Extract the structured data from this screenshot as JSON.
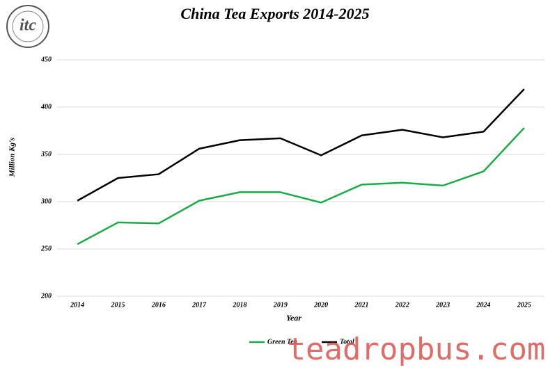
{
  "chart_data": {
    "type": "line",
    "title": "China Tea Exports 2014-2025",
    "x_label": "Year",
    "y_label": "Million Kg's",
    "categories": [
      "2014",
      "2015",
      "2016",
      "2017",
      "2018",
      "2019",
      "2020",
      "2021",
      "2022",
      "2023",
      "2024",
      "2025"
    ],
    "series": [
      {
        "name": "Green Tea",
        "color": "#1aab47",
        "values": [
          255,
          278,
          277,
          301,
          310,
          310,
          299,
          318,
          320,
          317,
          332,
          378
        ]
      },
      {
        "name": "Total",
        "color": "#000000",
        "values": [
          301,
          325,
          329,
          356,
          365,
          367,
          349,
          370,
          376,
          368,
          374,
          419
        ]
      }
    ],
    "ylim": [
      200,
      450
    ],
    "yticks": [
      200,
      250,
      300,
      350,
      400,
      450
    ],
    "grid": true,
    "legend": "bottom",
    "logo_text": "itc",
    "watermark": "teadropbus.com"
  }
}
